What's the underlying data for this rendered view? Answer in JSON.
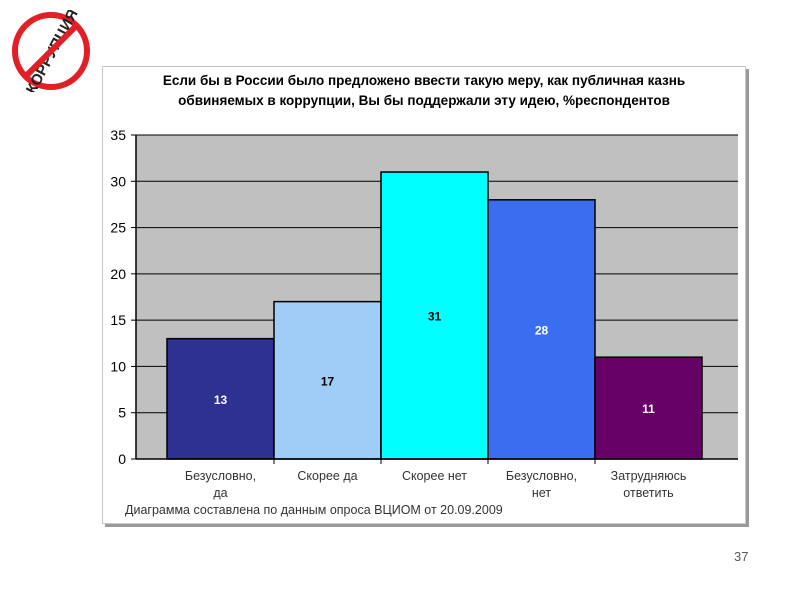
{
  "logo": {
    "text": "КОРРУПЦИЯ",
    "icon": "no-corruption-sign-icon",
    "ring_color": "#e31e24",
    "text_color": "#222222"
  },
  "slide": {
    "page_number": "37"
  },
  "chart_data": {
    "type": "bar",
    "title": [
      "Если бы в России было предложено ввести такую меру, как публичная казнь",
      "обвиняемых в коррупции, Вы бы поддержали эту идею, %респондентов"
    ],
    "categories": [
      [
        "Безусловно,",
        "да"
      ],
      [
        "Скорее да"
      ],
      [
        "Скорее нет"
      ],
      [
        "Безусловно,",
        "нет"
      ],
      [
        "Затрудняюсь",
        "ответить"
      ]
    ],
    "values": [
      13,
      17,
      31,
      28,
      11
    ],
    "value_labels": [
      "13",
      "17",
      "31",
      "28",
      "11"
    ],
    "bar_colors": [
      "#2e3192",
      "#9fcdf8",
      "#00ffff",
      "#3a6df0",
      "#660066"
    ],
    "label_colors": [
      "#ffffff",
      "#000000",
      "#000000",
      "#ffffff",
      "#ffffff"
    ],
    "ylim": [
      0,
      35
    ],
    "yticks": [
      "0",
      "5",
      "10",
      "15",
      "20",
      "25",
      "30",
      "35"
    ],
    "grid": true,
    "plot_background": "#c0c0c0",
    "xlabel": "",
    "ylabel": "",
    "caption": "Диаграмма составлена по данным опроса ВЦИОМ от 20.09.2009"
  }
}
